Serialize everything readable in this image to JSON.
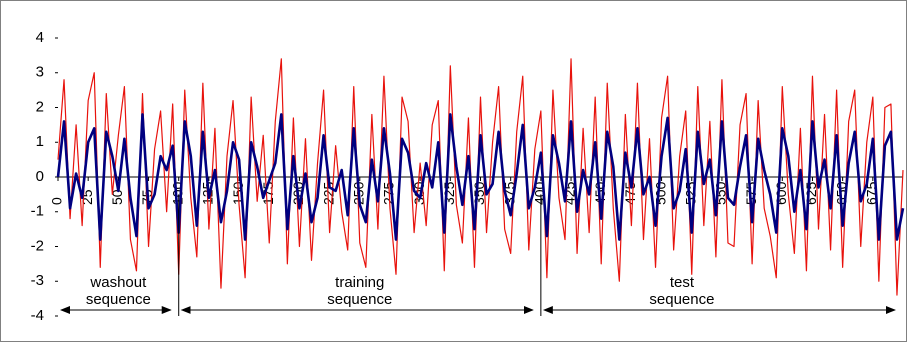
{
  "chart_data": {
    "type": "line",
    "x": [
      0,
      5,
      10,
      15,
      20,
      25,
      30,
      35,
      40,
      45,
      50,
      55,
      60,
      65,
      70,
      75,
      80,
      85,
      90,
      95,
      100,
      105,
      110,
      115,
      120,
      125,
      130,
      135,
      140,
      145,
      150,
      155,
      160,
      165,
      170,
      175,
      180,
      185,
      190,
      195,
      200,
      205,
      210,
      215,
      220,
      225,
      230,
      235,
      240,
      245,
      250,
      255,
      260,
      265,
      270,
      275,
      280,
      285,
      290,
      295,
      300,
      305,
      310,
      315,
      320,
      325,
      330,
      335,
      340,
      345,
      350,
      355,
      360,
      365,
      370,
      375,
      380,
      385,
      390,
      395,
      400,
      405,
      410,
      415,
      420,
      425,
      430,
      435,
      440,
      445,
      450,
      455,
      460,
      465,
      470,
      475,
      480,
      485,
      490,
      495,
      500,
      505,
      510,
      515,
      520,
      525,
      530,
      535,
      540,
      545,
      550,
      555,
      560,
      565,
      570,
      575,
      580,
      585,
      590,
      595,
      600,
      605,
      610,
      615,
      620,
      625,
      630,
      635,
      640,
      645,
      650,
      655,
      660,
      665,
      670,
      675,
      680,
      685,
      690,
      695,
      700
    ],
    "series": [
      {
        "color": "#e8120c",
        "values": [
          0.5,
          2.8,
          -1.2,
          1.5,
          -1.4,
          2.2,
          3.0,
          -2.6,
          2.4,
          -0.5,
          1.2,
          2.6,
          -1.8,
          -2.7,
          2.4,
          -2.0,
          0.8,
          1.9,
          -1.0,
          2.1,
          -2.8,
          2.5,
          -0.6,
          -2.3,
          2.7,
          -1.5,
          1.4,
          -3.2,
          0.6,
          2.2,
          -0.8,
          -2.9,
          2.3,
          -0.7,
          1.2,
          -1.9,
          1.6,
          3.4,
          -2.5,
          1.7,
          -2.0,
          1.1,
          -2.4,
          0.4,
          2.5,
          -1.6,
          0.9,
          -1.0,
          -2.1,
          2.6,
          -1.9,
          -2.6,
          1.8,
          -1.5,
          2.9,
          -0.9,
          -2.8,
          2.3,
          1.6,
          -1.6,
          0.4,
          -1.4,
          1.5,
          2.2,
          -2.7,
          3.2,
          -0.8,
          -1.9,
          1.7,
          -2.6,
          2.3,
          -1.6,
          1.0,
          2.6,
          -1.5,
          -2.2,
          1.3,
          2.9,
          -2.1,
          0.8,
          1.9,
          -2.9,
          2.5,
          -0.6,
          -1.8,
          3.4,
          -2.2,
          1.4,
          -1.6,
          2.3,
          -2.5,
          2.7,
          -0.9,
          -3.0,
          1.8,
          -1.4,
          2.7,
          -1.8,
          1.1,
          -2.6,
          1.7,
          2.9,
          -2.1,
          0.6,
          1.9,
          -2.8,
          2.6,
          -1.4,
          1.6,
          -2.3,
          2.8,
          -1.9,
          -2.0,
          1.5,
          2.4,
          -2.5,
          2.2,
          -0.9,
          -1.7,
          -2.9,
          2.6,
          -0.5,
          -2.2,
          1.4,
          -2.7,
          2.9,
          -1.5,
          1.8,
          -2.1,
          2.5,
          -2.6,
          1.6,
          2.5,
          -2.0,
          1.0,
          2.3,
          -3.0,
          2.0,
          2.1,
          -3.4,
          0.2
        ]
      },
      {
        "color": "#000080",
        "values": [
          0,
          1.6,
          -0.9,
          0.1,
          -0.6,
          1.0,
          1.4,
          -1.8,
          1.3,
          0.6,
          -0.4,
          1.1,
          -0.6,
          -1.7,
          1.8,
          -0.9,
          -0.5,
          0.6,
          0.2,
          0.9,
          -1.6,
          1.6,
          0.6,
          -1.4,
          1.3,
          -0.6,
          0.2,
          -1.3,
          -0.4,
          1.0,
          0.5,
          -1.8,
          1.0,
          0.3,
          -0.6,
          -0.1,
          0.4,
          1.8,
          -1.5,
          0.6,
          -0.9,
          0.1,
          -1.3,
          -0.6,
          1.2,
          -0.3,
          -0.4,
          0.2,
          -1.1,
          1.4,
          -0.8,
          -1.3,
          0.5,
          -0.7,
          1.4,
          0.1,
          -1.8,
          1.1,
          0.7,
          -0.4,
          -0.6,
          0.4,
          -0.3,
          1.0,
          -1.6,
          1.8,
          0.3,
          -0.8,
          0.6,
          -1.5,
          1.2,
          -0.5,
          -0.2,
          1.3,
          -0.4,
          -1.1,
          0.1,
          1.5,
          -0.9,
          -0.3,
          0.7,
          -1.7,
          1.2,
          0.4,
          -0.7,
          1.6,
          -1.0,
          0.2,
          -0.5,
          1.0,
          -1.2,
          1.3,
          0.3,
          -1.8,
          0.7,
          -0.3,
          1.4,
          -0.5,
          0.0,
          -1.4,
          0.6,
          1.7,
          -0.9,
          -0.4,
          0.8,
          -1.6,
          1.3,
          -0.2,
          0.5,
          -1.1,
          1.6,
          -0.6,
          -0.8,
          0.3,
          1.2,
          -1.3,
          1.1,
          0.2,
          -0.5,
          -1.6,
          1.4,
          0.6,
          -1.0,
          0.2,
          -1.5,
          1.6,
          -0.3,
          0.5,
          -0.9,
          1.2,
          -1.4,
          0.4,
          1.3,
          -0.7,
          -0.2,
          1.1,
          -1.8,
          0.9,
          1.3,
          -1.8,
          -0.9
        ]
      }
    ],
    "xlim": [
      0,
      700
    ],
    "xticks": [
      0,
      25,
      50,
      75,
      100,
      125,
      150,
      175,
      200,
      225,
      250,
      275,
      300,
      325,
      350,
      375,
      400,
      425,
      450,
      475,
      500,
      525,
      550,
      575,
      600,
      625,
      650,
      675
    ],
    "ylim": [
      -4,
      4
    ],
    "yticks": [
      -4,
      -3,
      -2,
      -1,
      0,
      1,
      2,
      3,
      4
    ],
    "annotations": [
      {
        "lines": [
          "washout",
          "sequence"
        ],
        "range": [
          0,
          100
        ]
      },
      {
        "lines": [
          "training",
          "sequence"
        ],
        "range": [
          100,
          400
        ]
      },
      {
        "lines": [
          "test",
          "sequence"
        ],
        "range": [
          400,
          700
        ]
      }
    ]
  }
}
